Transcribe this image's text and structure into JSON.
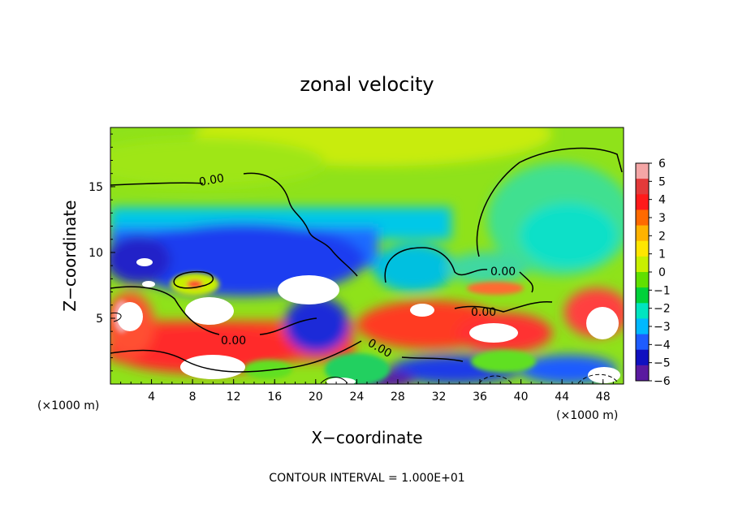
{
  "chart_data": {
    "type": "heatmap",
    "title": "zonal velocity",
    "xlabel": "X−coordinate",
    "ylabel": "Z−coordinate",
    "x_units_left": "(×1000 m)",
    "x_units_right": "(×1000 m)",
    "x_ticks": [
      "4",
      "8",
      "12",
      "16",
      "20",
      "24",
      "28",
      "32",
      "36",
      "40",
      "44",
      "48"
    ],
    "y_ticks": [
      "5",
      "10",
      "15"
    ],
    "xlim": [
      0,
      50
    ],
    "ylim": [
      0,
      19.5
    ],
    "colorbar": {
      "ticks": [
        "6",
        "5",
        "4",
        "3",
        "2",
        "1",
        "0",
        "−1",
        "−2",
        "−3",
        "−4",
        "−5",
        "−6"
      ],
      "range": [
        -6,
        6
      ],
      "colors": [
        "#f4a6a6",
        "#e33a3a",
        "#ff1a1a",
        "#ff6a00",
        "#ffb300",
        "#ffe600",
        "#c8f000",
        "#60e000",
        "#00d23a",
        "#00e5c0",
        "#00b8ff",
        "#1e5cff",
        "#1010c0",
        "#5a1aa0"
      ]
    },
    "contour_labels": [
      "0.00",
      "0.00",
      "0.00",
      "0.00",
      "0.00"
    ],
    "contour_interval_text": "CONTOUR INTERVAL = 1.000E+01"
  }
}
